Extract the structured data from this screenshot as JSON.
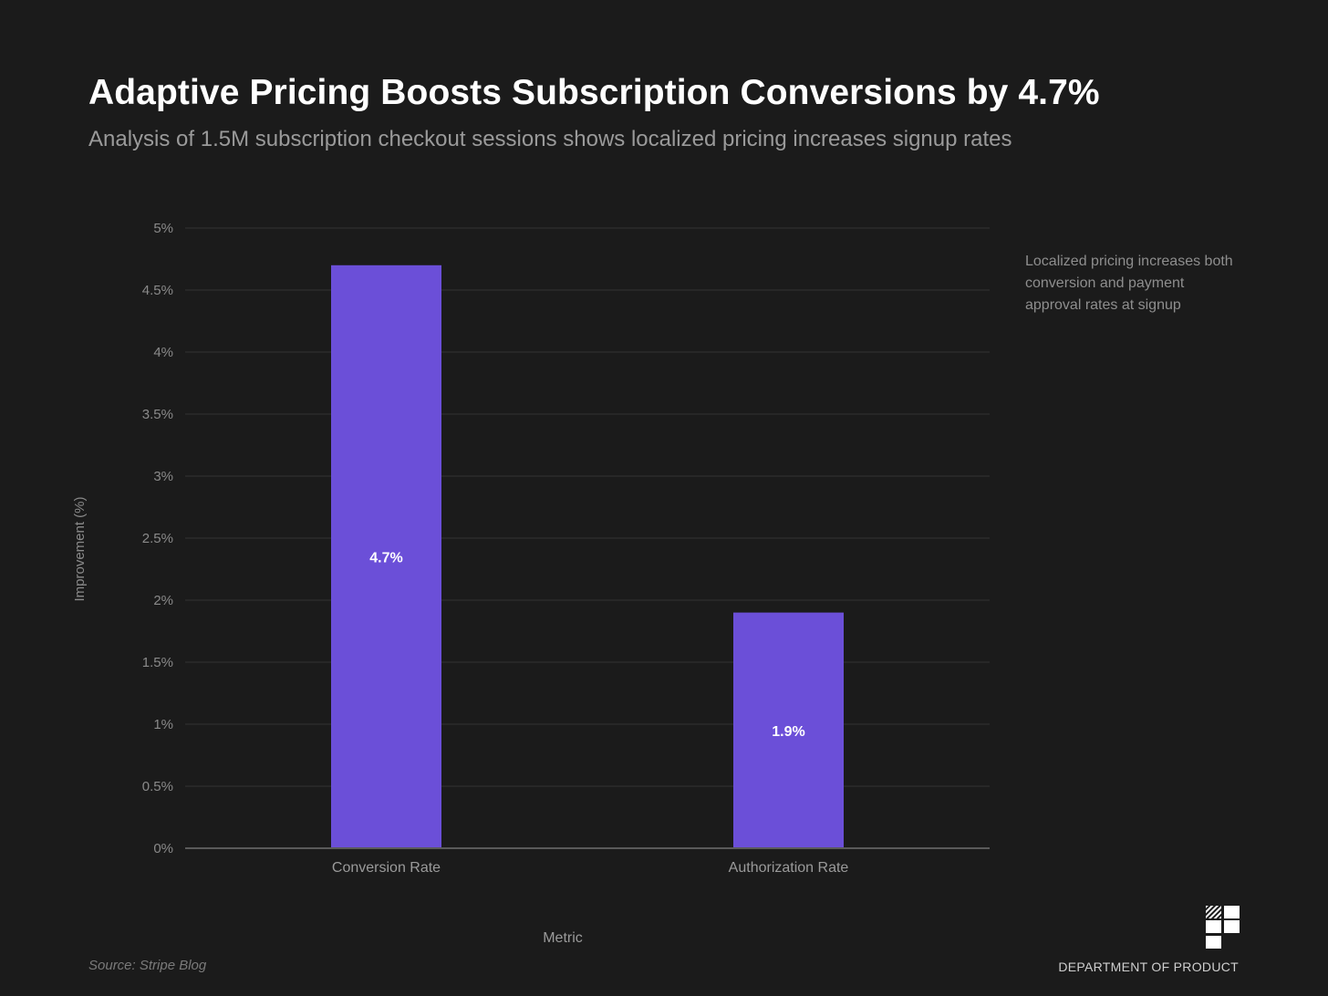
{
  "header": {
    "title": "Adaptive Pricing Boosts Subscription Conversions by 4.7%",
    "subtitle": "Analysis of 1.5M subscription checkout sessions shows localized pricing increases signup rates"
  },
  "annotation": "Localized pricing increases both conversion and payment approval rates at signup",
  "footer": {
    "source": "Source: Stripe Blog",
    "brand": "DEPARTMENT OF PRODUCT"
  },
  "colors": {
    "bar": "#6b4fd8",
    "background": "#1b1b1b"
  },
  "chart_data": {
    "type": "bar",
    "title": "Adaptive Pricing Boosts Subscription Conversions by 4.7%",
    "categories": [
      "Conversion Rate",
      "Authorization Rate"
    ],
    "values": [
      4.7,
      1.9
    ],
    "data_labels": [
      "4.7%",
      "1.9%"
    ],
    "xlabel": "Metric",
    "ylabel": "Improvement (%)",
    "ylim": [
      0,
      5
    ],
    "yticks": [
      0,
      0.5,
      1,
      1.5,
      2,
      2.5,
      3,
      3.5,
      4,
      4.5,
      5
    ],
    "ytick_labels": [
      "0%",
      "0.5%",
      "1%",
      "1.5%",
      "2%",
      "2.5%",
      "3%",
      "3.5%",
      "4%",
      "4.5%",
      "5%"
    ],
    "grid": true
  }
}
